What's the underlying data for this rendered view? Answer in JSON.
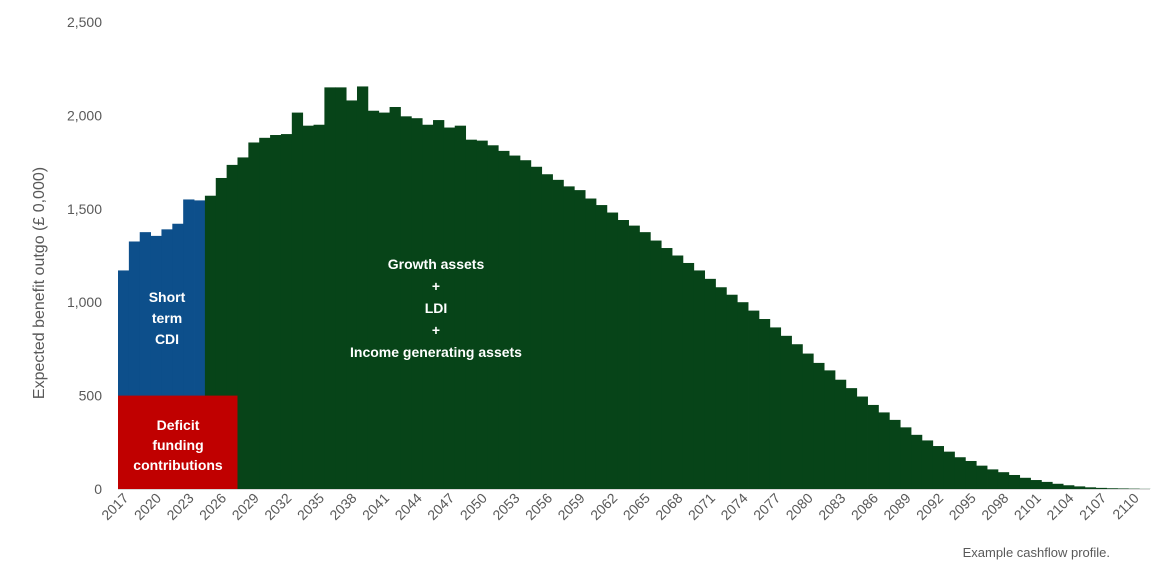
{
  "chart_data": {
    "type": "bar",
    "stacked": true,
    "xlabel": "",
    "ylabel": "Expected benefit outgo (£ 0,000)",
    "ylim": [
      0,
      2500
    ],
    "yticks": [
      0,
      500,
      1000,
      1500,
      2000,
      2500
    ],
    "ytick_labels": [
      "0",
      "500",
      "1,000",
      "1,500",
      "2,000",
      "2,500"
    ],
    "x_start": 2017,
    "x_end": 2111,
    "xtick_labels": [
      "2017",
      "2020",
      "2023",
      "2026",
      "2029",
      "2032",
      "2035",
      "2038",
      "2041",
      "2044",
      "2047",
      "2050",
      "2053",
      "2056",
      "2059",
      "2062",
      "2065",
      "2068",
      "2071",
      "2074",
      "2077",
      "2080",
      "2083",
      "2086",
      "2089",
      "2092",
      "2095",
      "2098",
      "2101",
      "2104",
      "2107",
      "2110"
    ],
    "grid": false,
    "legend": "none",
    "colors": {
      "cdi": "#0D4F8B",
      "deficit": "#C00000",
      "growth": "#074418",
      "axis": "#D9D9D9"
    },
    "values": [
      1170,
      1325,
      1375,
      1355,
      1390,
      1420,
      1550,
      1545,
      1570,
      1665,
      1735,
      1775,
      1855,
      1880,
      1895,
      1900,
      2015,
      1945,
      1950,
      2150,
      2150,
      2080,
      2155,
      2025,
      2015,
      2045,
      1995,
      1985,
      1950,
      1975,
      1935,
      1945,
      1870,
      1865,
      1840,
      1810,
      1785,
      1760,
      1725,
      1685,
      1655,
      1620,
      1600,
      1555,
      1520,
      1480,
      1440,
      1410,
      1375,
      1330,
      1290,
      1250,
      1210,
      1170,
      1125,
      1080,
      1040,
      1000,
      955,
      910,
      865,
      820,
      775,
      725,
      675,
      635,
      585,
      540,
      495,
      450,
      410,
      370,
      330,
      290,
      260,
      230,
      200,
      170,
      150,
      125,
      105,
      90,
      75,
      60,
      48,
      38,
      28,
      20,
      14,
      9,
      6,
      4,
      3,
      2,
      1
    ],
    "annotations": {
      "cdi": [
        "Short",
        "term",
        "CDI"
      ],
      "deficit": [
        "Deficit",
        "funding",
        "contributions"
      ],
      "growth": [
        "Growth assets",
        "+",
        "LDI",
        "+",
        "Income generating assets"
      ]
    },
    "caption": "Example cashflow profile."
  }
}
